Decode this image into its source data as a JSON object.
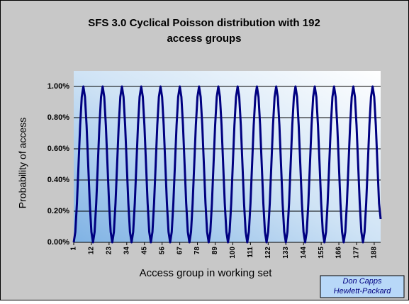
{
  "chart_data": {
    "type": "line",
    "title": [
      "SFS 3.0 Cyclical Poisson distribution with 192",
      "access groups"
    ],
    "ylabel": "Probability of access",
    "xlabel": "Access group in working set",
    "credit": [
      "Don Capps",
      "Hewlett-Packard"
    ],
    "x": [
      1,
      2,
      3,
      4,
      5,
      6,
      7,
      8,
      9,
      10,
      11,
      12,
      13,
      14,
      15,
      16,
      17,
      18,
      19,
      20,
      21,
      22,
      23,
      24,
      25,
      26,
      27,
      28,
      29,
      30,
      31,
      32,
      33,
      34,
      35,
      36,
      37,
      38,
      39,
      40,
      41,
      42,
      43,
      44,
      45,
      46,
      47,
      48,
      49,
      50,
      51,
      52,
      53,
      54,
      55,
      56,
      57,
      58,
      59,
      60,
      61,
      62,
      63,
      64,
      65,
      66,
      67,
      68,
      69,
      70,
      71,
      72,
      73,
      74,
      75,
      76,
      77,
      78,
      79,
      80,
      81,
      82,
      83,
      84,
      85,
      86,
      87,
      88,
      89,
      90,
      91,
      92,
      93,
      94,
      95,
      96,
      97,
      98,
      99,
      100,
      101,
      102,
      103,
      104,
      105,
      106,
      107,
      108,
      109,
      110,
      111,
      112,
      113,
      114,
      115,
      116,
      117,
      118,
      119,
      120,
      121,
      122,
      123,
      124,
      125,
      126,
      127,
      128,
      129,
      130,
      131,
      132,
      133,
      134,
      135,
      136,
      137,
      138,
      139,
      140,
      141,
      142,
      143,
      144,
      145,
      146,
      147,
      148,
      149,
      150,
      151,
      152,
      153,
      154,
      155,
      156,
      157,
      158,
      159,
      160,
      161,
      162,
      163,
      164,
      165,
      166,
      167,
      168,
      169,
      170,
      171,
      172,
      173,
      174,
      175,
      176,
      177,
      178,
      179,
      180,
      181,
      182,
      183,
      184,
      185,
      186,
      187,
      188,
      189,
      190,
      191,
      192
    ],
    "series": [
      {
        "name": "Probability of access",
        "color": "#000080",
        "values": [
          0,
          0.067,
          0.25,
          0.5,
          0.75,
          0.933,
          1,
          0.933,
          0.75,
          0.5,
          0.25,
          0.067,
          0,
          0.067,
          0.25,
          0.5,
          0.75,
          0.933,
          1,
          0.933,
          0.75,
          0.5,
          0.25,
          0.067,
          0,
          0.067,
          0.25,
          0.5,
          0.75,
          0.933,
          1,
          0.933,
          0.75,
          0.5,
          0.25,
          0.067,
          0,
          0.067,
          0.25,
          0.5,
          0.75,
          0.933,
          1,
          0.933,
          0.75,
          0.5,
          0.25,
          0.067,
          0,
          0.067,
          0.25,
          0.5,
          0.75,
          0.933,
          1,
          0.933,
          0.75,
          0.5,
          0.25,
          0.067,
          0,
          0.067,
          0.25,
          0.5,
          0.75,
          0.933,
          1,
          0.933,
          0.75,
          0.5,
          0.25,
          0.067,
          0,
          0.067,
          0.25,
          0.5,
          0.75,
          0.933,
          1,
          0.933,
          0.75,
          0.5,
          0.25,
          0.067,
          0,
          0.067,
          0.25,
          0.5,
          0.75,
          0.933,
          1,
          0.933,
          0.75,
          0.5,
          0.25,
          0.067,
          0,
          0.067,
          0.25,
          0.5,
          0.75,
          0.933,
          1,
          0.933,
          0.75,
          0.5,
          0.25,
          0.067,
          0,
          0.067,
          0.25,
          0.5,
          0.75,
          0.933,
          1,
          0.933,
          0.75,
          0.5,
          0.25,
          0.067,
          0,
          0.067,
          0.25,
          0.5,
          0.75,
          0.933,
          1,
          0.933,
          0.75,
          0.5,
          0.25,
          0.067,
          0,
          0.067,
          0.25,
          0.5,
          0.75,
          0.933,
          1,
          0.933,
          0.75,
          0.5,
          0.25,
          0.067,
          0,
          0.067,
          0.25,
          0.5,
          0.75,
          0.933,
          1,
          0.933,
          0.75,
          0.5,
          0.25,
          0.067,
          0,
          0.067,
          0.25,
          0.5,
          0.75,
          0.933,
          1,
          0.933,
          0.75,
          0.5,
          0.25,
          0.067,
          0,
          0.067,
          0.25,
          0.5,
          0.75,
          0.933,
          1,
          0.933,
          0.75,
          0.5,
          0.25,
          0.067,
          0,
          0.067,
          0.25,
          0.5,
          0.75,
          0.933,
          1,
          0.933,
          0.75,
          0.5,
          0.25,
          0.15
        ]
      }
    ],
    "xlim": [
      1,
      192
    ],
    "xticks": [
      1,
      12,
      23,
      34,
      45,
      56,
      67,
      78,
      89,
      100,
      111,
      122,
      133,
      144,
      155,
      166,
      177,
      188
    ],
    "ylim": [
      0,
      1.1
    ],
    "yticks": [
      {
        "value": 0,
        "label": "0.00%"
      },
      {
        "value": 0.2,
        "label": "0.20%"
      },
      {
        "value": 0.4,
        "label": "0.40%"
      },
      {
        "value": 0.6,
        "label": "0.60%"
      },
      {
        "value": 0.8,
        "label": "0.80%"
      },
      {
        "value": 1,
        "label": "1.00%"
      }
    ],
    "grid": true
  }
}
